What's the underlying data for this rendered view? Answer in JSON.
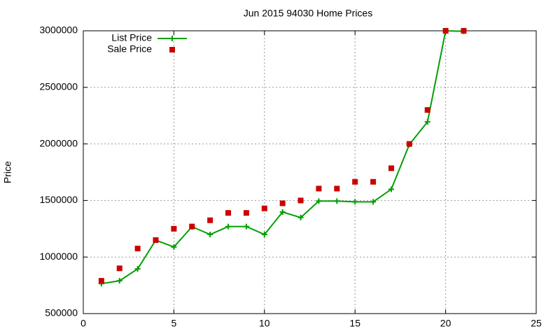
{
  "chart_data": {
    "type": "line",
    "title": "Jun 2015 94030 Home Prices",
    "y_label": "Price",
    "x": [
      1,
      2,
      3,
      4,
      5,
      6,
      7,
      8,
      9,
      10,
      11,
      12,
      13,
      14,
      15,
      16,
      17,
      18,
      19,
      20,
      21
    ],
    "series": [
      {
        "name": "List Price",
        "color": "#00a000",
        "mode": "lines+markers",
        "values": [
          765000,
          790000,
          895000,
          1149000,
          1089000,
          1268000,
          1199000,
          1270000,
          1270000,
          1199000,
          1398000,
          1349000,
          1495000,
          1495000,
          1488000,
          1488000,
          1599000,
          1995000,
          2195000,
          3000000,
          2995000
        ]
      },
      {
        "name": "Sale Price",
        "color": "#cc0000",
        "mode": "markers",
        "values": [
          790000,
          900000,
          1075000,
          1150000,
          1250000,
          1270000,
          1325000,
          1390000,
          1390000,
          1430000,
          1475000,
          1500000,
          1605000,
          1605000,
          1665000,
          1665000,
          1785000,
          2000000,
          2300000,
          3000000,
          3000000
        ]
      }
    ],
    "xlim": [
      0,
      25
    ],
    "xticks": [
      0,
      5,
      10,
      15,
      20,
      25
    ],
    "ylim": [
      500000,
      3000000
    ],
    "yticks": [
      500000,
      1000000,
      1500000,
      2000000,
      2500000,
      3000000
    ],
    "grid": true,
    "legend": "top-left"
  }
}
